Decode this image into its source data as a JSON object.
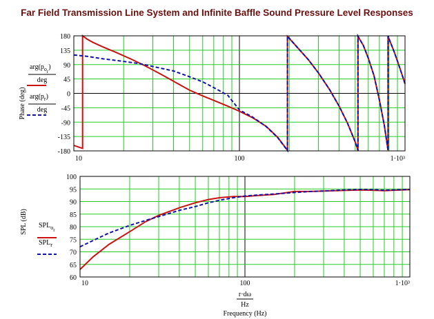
{
  "title": "Far Field Transmission Line System and Infinite Baffle Sound Pressure Level Responses",
  "colors": {
    "red": "#cc1111",
    "blue": "#1111aa",
    "grid": "#22cc22",
    "frame": "#000000"
  },
  "chart_data": [
    {
      "type": "line",
      "x_scale": "log",
      "xlim": [
        10,
        1000
      ],
      "ylim": [
        -180,
        180
      ],
      "grid": true,
      "ylabel": "Phase (deg)",
      "y_ticks": [
        "180",
        "135",
        "90",
        "45",
        "0",
        "-45",
        "-90",
        "-135",
        "-180"
      ],
      "x_ticks": [
        "10",
        "100",
        "1·10³"
      ],
      "legend": [
        {
          "fn": "arg(p",
          "sub": "o",
          "sub2": "r",
          "close": ")",
          "den": "deg",
          "style": "solid",
          "color": "#cc1111"
        },
        {
          "fn": "arg(p",
          "sub": "r",
          "sub2": "",
          "close": ")",
          "den": "deg",
          "style": "dashed",
          "color": "#1111aa"
        }
      ],
      "series": [
        {
          "style": "solid",
          "color": "#cc1111",
          "points": [
            [
              10,
              -163
            ],
            [
              11,
              -170
            ],
            [
              11.3,
              -172
            ],
            [
              11.3,
              180
            ],
            [
              12,
              170
            ],
            [
              13,
              160
            ],
            [
              15,
              145
            ],
            [
              18,
              128
            ],
            [
              22,
              108
            ],
            [
              27,
              86
            ],
            [
              33,
              62
            ],
            [
              40,
              38
            ],
            [
              50,
              10
            ],
            [
              60,
              -8
            ],
            [
              70,
              -22
            ],
            [
              85,
              -40
            ],
            [
              100,
              -56
            ],
            [
              120,
              -76
            ],
            [
              145,
              -103
            ],
            [
              170,
              -137
            ],
            [
              195,
              -178
            ],
            [
              195,
              178
            ],
            [
              220,
              148
            ],
            [
              260,
              106
            ],
            [
              300,
              64
            ],
            [
              350,
              12
            ],
            [
              400,
              -40
            ],
            [
              450,
              -94
            ],
            [
              500,
              -152
            ],
            [
              520,
              -178
            ],
            [
              520,
              178
            ],
            [
              560,
              150
            ],
            [
              600,
              110
            ],
            [
              650,
              55
            ],
            [
              700,
              -20
            ],
            [
              750,
              -100
            ],
            [
              790,
              -178
            ],
            [
              790,
              178
            ],
            [
              860,
              130
            ],
            [
              930,
              80
            ],
            [
              1000,
              30
            ]
          ]
        },
        {
          "style": "dashed",
          "color": "#1111aa",
          "points": [
            [
              10,
              120
            ],
            [
              12,
              116
            ],
            [
              15,
              108
            ],
            [
              20,
              100
            ],
            [
              25,
              93
            ],
            [
              30,
              84
            ],
            [
              40,
              70
            ],
            [
              50,
              52
            ],
            [
              60,
              36
            ],
            [
              70,
              18
            ],
            [
              85,
              -6
            ],
            [
              100,
              -52
            ],
            [
              120,
              -74
            ],
            [
              145,
              -104
            ],
            [
              170,
              -138
            ],
            [
              195,
              -179
            ],
            [
              195,
              179
            ],
            [
              220,
              148
            ],
            [
              260,
              106
            ],
            [
              300,
              64
            ],
            [
              350,
              12
            ],
            [
              400,
              -40
            ],
            [
              450,
              -94
            ],
            [
              500,
              -152
            ],
            [
              520,
              -179
            ],
            [
              520,
              179
            ],
            [
              560,
              150
            ],
            [
              600,
              110
            ],
            [
              650,
              55
            ],
            [
              700,
              -20
            ],
            [
              750,
              -100
            ],
            [
              790,
              -179
            ],
            [
              790,
              179
            ],
            [
              860,
              130
            ],
            [
              930,
              80
            ],
            [
              1000,
              30
            ]
          ]
        }
      ]
    },
    {
      "type": "line",
      "x_scale": "log",
      "xlim": [
        10,
        1000
      ],
      "ylim": [
        60,
        100
      ],
      "grid": true,
      "ylabel": "SPL (dB)",
      "y_ticks": [
        "100",
        "95",
        "90",
        "85",
        "80",
        "75",
        "70",
        "65",
        "60"
      ],
      "x_ticks": [
        "10",
        "100",
        "1·10³"
      ],
      "xlabel_num": "r·dω",
      "xlabel_den": "Hz",
      "xlabel": "Frequency (Hz)",
      "legend": [
        {
          "fn": "SPL",
          "sub": "o",
          "sub2": "r",
          "style": "solid",
          "color": "#cc1111"
        },
        {
          "fn": "SPL",
          "sub": "r",
          "sub2": "",
          "style": "dashed",
          "color": "#1111aa"
        }
      ],
      "series": [
        {
          "style": "solid",
          "color": "#cc1111",
          "points": [
            [
              10,
              63
            ],
            [
              12,
              68
            ],
            [
              15,
              73
            ],
            [
              20,
              78
            ],
            [
              25,
              82
            ],
            [
              30,
              84.5
            ],
            [
              40,
              87.5
            ],
            [
              50,
              89.5
            ],
            [
              60,
              90.8
            ],
            [
              70,
              91.5
            ],
            [
              85,
              92
            ],
            [
              100,
              92
            ],
            [
              120,
              92.4
            ],
            [
              150,
              92.8
            ],
            [
              200,
              94
            ],
            [
              250,
              94
            ],
            [
              300,
              94.2
            ],
            [
              400,
              94.4
            ],
            [
              500,
              94.6
            ],
            [
              600,
              94.5
            ],
            [
              700,
              94.3
            ],
            [
              800,
              94.5
            ],
            [
              1000,
              94.7
            ]
          ]
        },
        {
          "style": "dashed",
          "color": "#1111aa",
          "points": [
            [
              10,
              72
            ],
            [
              12,
              74.5
            ],
            [
              15,
              77.5
            ],
            [
              20,
              80.5
            ],
            [
              25,
              82.5
            ],
            [
              30,
              84
            ],
            [
              40,
              86.5
            ],
            [
              50,
              88
            ],
            [
              60,
              89.5
            ],
            [
              70,
              90.5
            ],
            [
              85,
              91.5
            ],
            [
              100,
              92.2
            ],
            [
              120,
              92.6
            ],
            [
              150,
              93
            ],
            [
              200,
              93.6
            ],
            [
              250,
              94
            ],
            [
              300,
              94.2
            ],
            [
              400,
              94.6
            ],
            [
              500,
              94.8
            ],
            [
              600,
              94.7
            ],
            [
              700,
              94.5
            ],
            [
              800,
              94.6
            ],
            [
              1000,
              94.8
            ]
          ]
        }
      ]
    }
  ]
}
